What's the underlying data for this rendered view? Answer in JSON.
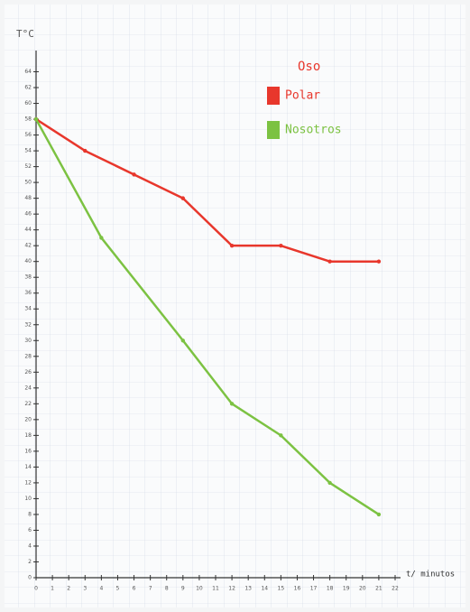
{
  "chart_data": {
    "type": "line",
    "y_label": "T°C",
    "x_label": "t/ minutos",
    "legend_title": "Oso",
    "series": [
      {
        "name": "Polar",
        "color": "#e8372c",
        "x": [
          0,
          3,
          6,
          9,
          12,
          15,
          18,
          21
        ],
        "values": [
          58,
          54,
          51,
          48,
          42,
          42,
          40,
          40
        ]
      },
      {
        "name": "Nosotros",
        "color": "#7cc242",
        "x": [
          0,
          4,
          9,
          12,
          15,
          18,
          21
        ],
        "values": [
          58,
          43,
          30,
          22,
          18,
          12,
          8
        ]
      }
    ],
    "xlim": [
      0,
      22
    ],
    "xticks": [
      0,
      1,
      2,
      3,
      4,
      5,
      6,
      7,
      8,
      9,
      10,
      11,
      12,
      13,
      14,
      15,
      16,
      17,
      18,
      19,
      20,
      21,
      22
    ],
    "ylim": [
      0,
      66
    ],
    "yticks": [
      0,
      2,
      4,
      6,
      8,
      10,
      12,
      14,
      16,
      18,
      20,
      22,
      24,
      26,
      28,
      30,
      32,
      34,
      36,
      38,
      40,
      42,
      44,
      46,
      48,
      50,
      52,
      54,
      56,
      58,
      60,
      62,
      64
    ],
    "grid": true
  }
}
